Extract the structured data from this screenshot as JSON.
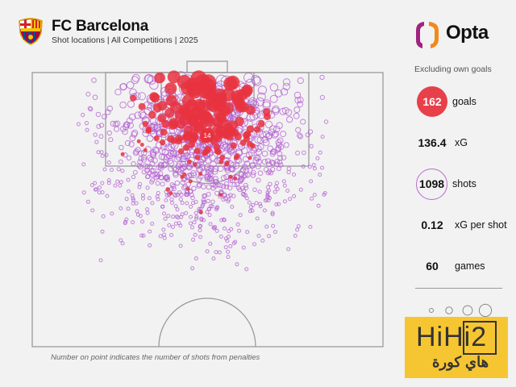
{
  "header": {
    "title": "FC Barcelona",
    "subtitle": "Shot locations | All Competitions | 2025",
    "crest_lettering": "FCB"
  },
  "brand": {
    "name": "Opta"
  },
  "stats": {
    "note": "Excluding own goals",
    "goals": {
      "value": "162",
      "label": "goals"
    },
    "xg": {
      "value": "136.4",
      "label": "xG"
    },
    "shots": {
      "value": "1098",
      "label": "shots"
    },
    "xg_per_shot": {
      "value": "0.12",
      "label": "xG per shot"
    },
    "games": {
      "value": "60",
      "label": "games"
    }
  },
  "footnote": "Number on point indicates the number of shots from penalties",
  "watermark": {
    "latin": "HiHi2",
    "arabic": "هاي كورة"
  },
  "colors": {
    "goal": "#e8323f",
    "shot": "#b35fd0",
    "pitch_line": "#9a9a9a",
    "background": "#f2f2f2"
  },
  "chart_data": {
    "type": "scatter",
    "title": "FC Barcelona shot locations",
    "total_shots": 1098,
    "goals": 162,
    "xg_total": 136.4,
    "penalty_shots": 14,
    "penalty_label": "14",
    "legend": [
      "goal (filled red)",
      "non-goal shot (purple outline)",
      "circle size = xG"
    ],
    "size_legend_steps": 4
  }
}
